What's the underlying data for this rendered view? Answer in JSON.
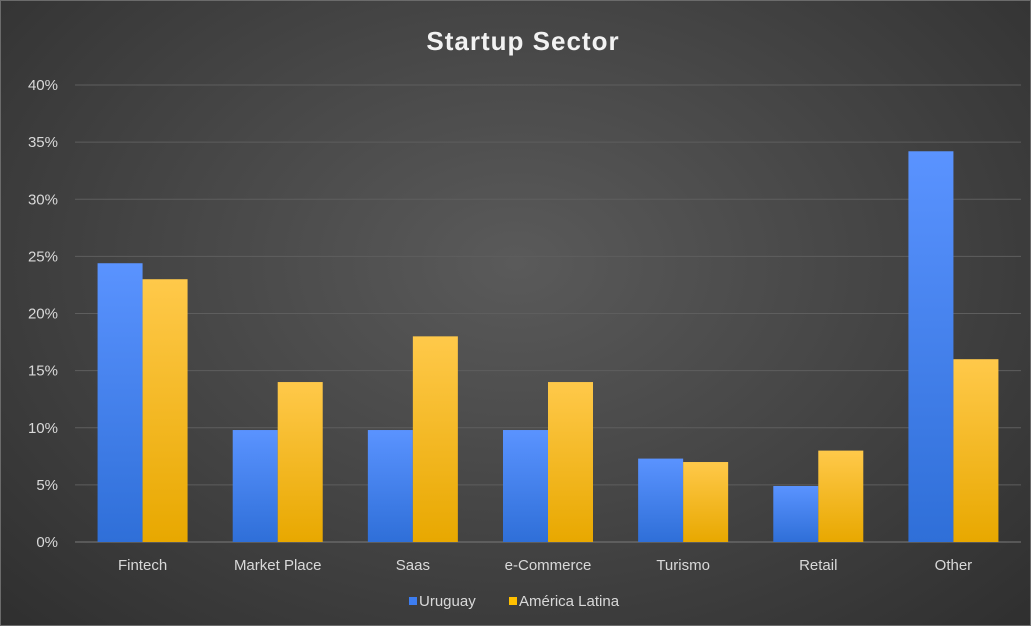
{
  "chart_data": {
    "type": "bar",
    "title": "Startup Sector",
    "categories": [
      "Fintech",
      "Market Place",
      "Saas",
      "e-Commerce",
      "Turismo",
      "Retail",
      "Other"
    ],
    "series": [
      {
        "name": "Uruguay",
        "values": [
          24.4,
          9.8,
          9.8,
          9.8,
          7.3,
          4.9,
          34.2
        ],
        "color": "#3d7df0"
      },
      {
        "name": "América Latina",
        "values": [
          23,
          14,
          18,
          14,
          7,
          8,
          16
        ],
        "color": "#ffc000"
      }
    ],
    "ylim": [
      0,
      40
    ],
    "y_ticks": [
      "0%",
      "5%",
      "10%",
      "15%",
      "20%",
      "25%",
      "30%",
      "35%",
      "40%"
    ],
    "grid": true,
    "legend_position": "bottom"
  }
}
